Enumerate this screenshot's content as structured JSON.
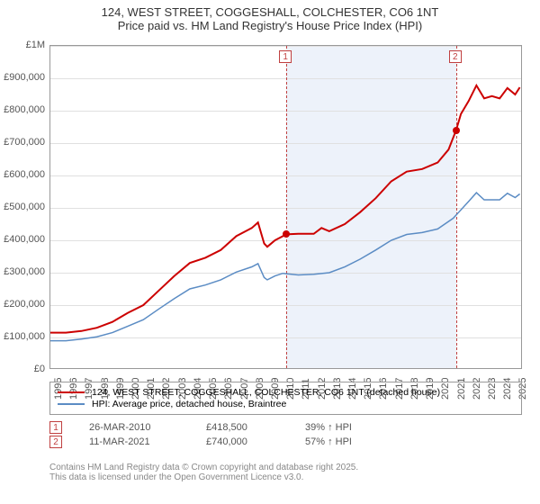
{
  "title": {
    "line1": "124, WEST STREET, COGGESHALL, COLCHESTER, CO6 1NT",
    "line2": "Price paid vs. HM Land Registry's House Price Index (HPI)"
  },
  "chart": {
    "type": "line",
    "background_color": "#ffffff",
    "grid_color": "#e0e0e0",
    "border_color": "#999999",
    "xlim": [
      1995,
      2025.5
    ],
    "ylim": [
      0,
      1000000
    ],
    "ytick_step": 100000,
    "ytick_labels": [
      "£0",
      "£100,000",
      "£200,000",
      "£300,000",
      "£400,000",
      "£500,000",
      "£600,000",
      "£700,000",
      "£800,000",
      "£900,000",
      "£1M"
    ],
    "xticks": [
      1995,
      1996,
      1997,
      1998,
      1999,
      2000,
      2001,
      2002,
      2003,
      2004,
      2005,
      2006,
      2007,
      2008,
      2009,
      2010,
      2011,
      2012,
      2013,
      2014,
      2015,
      2016,
      2017,
      2018,
      2019,
      2020,
      2021,
      2022,
      2023,
      2024,
      2025
    ],
    "shaded_region": {
      "xstart": 2010.23,
      "xend": 2021.19,
      "color": "#edf2fa"
    },
    "title_fontsize": 13,
    "label_fontsize": 11,
    "series": [
      {
        "name": "property",
        "label": "124, WEST STREET, COGGESHALL, COLCHESTER, CO6 1NT (detached house)",
        "color": "#cc0000",
        "line_width": 2,
        "data": [
          [
            1995,
            115000
          ],
          [
            1996,
            115000
          ],
          [
            1997,
            120000
          ],
          [
            1998,
            130000
          ],
          [
            1999,
            148000
          ],
          [
            2000,
            176000
          ],
          [
            2001,
            200000
          ],
          [
            2002,
            245000
          ],
          [
            2003,
            290000
          ],
          [
            2004,
            330000
          ],
          [
            2005,
            346000
          ],
          [
            2006,
            370000
          ],
          [
            2007,
            413000
          ],
          [
            2008,
            438000
          ],
          [
            2008.4,
            455000
          ],
          [
            2008.8,
            390000
          ],
          [
            2009,
            380000
          ],
          [
            2009.5,
            400000
          ],
          [
            2010.23,
            418500
          ],
          [
            2011,
            420000
          ],
          [
            2012,
            420000
          ],
          [
            2012.5,
            438000
          ],
          [
            2013,
            428000
          ],
          [
            2014,
            450000
          ],
          [
            2015,
            487000
          ],
          [
            2016,
            530000
          ],
          [
            2017,
            582000
          ],
          [
            2018,
            612000
          ],
          [
            2019,
            620000
          ],
          [
            2020,
            640000
          ],
          [
            2020.7,
            680000
          ],
          [
            2021.19,
            740000
          ],
          [
            2021.5,
            790000
          ],
          [
            2022,
            830000
          ],
          [
            2022.5,
            878000
          ],
          [
            2023,
            838000
          ],
          [
            2023.5,
            845000
          ],
          [
            2024,
            838000
          ],
          [
            2024.5,
            870000
          ],
          [
            2025,
            850000
          ],
          [
            2025.3,
            872000
          ]
        ]
      },
      {
        "name": "hpi",
        "label": "HPI: Average price, detached house, Braintree",
        "color": "#5b8cc4",
        "line_width": 1.5,
        "data": [
          [
            1995,
            90000
          ],
          [
            1996,
            90000
          ],
          [
            1997,
            95000
          ],
          [
            1998,
            102000
          ],
          [
            1999,
            115000
          ],
          [
            2000,
            135000
          ],
          [
            2001,
            155000
          ],
          [
            2002,
            188000
          ],
          [
            2003,
            220000
          ],
          [
            2004,
            250000
          ],
          [
            2005,
            262000
          ],
          [
            2006,
            278000
          ],
          [
            2007,
            302000
          ],
          [
            2008,
            318000
          ],
          [
            2008.4,
            328000
          ],
          [
            2008.8,
            285000
          ],
          [
            2009,
            278000
          ],
          [
            2009.5,
            290000
          ],
          [
            2010,
            298000
          ],
          [
            2011,
            293000
          ],
          [
            2012,
            295000
          ],
          [
            2013,
            300000
          ],
          [
            2014,
            318000
          ],
          [
            2015,
            342000
          ],
          [
            2016,
            370000
          ],
          [
            2017,
            400000
          ],
          [
            2018,
            418000
          ],
          [
            2019,
            424000
          ],
          [
            2020,
            435000
          ],
          [
            2021,
            468000
          ],
          [
            2022,
            520000
          ],
          [
            2022.5,
            547000
          ],
          [
            2023,
            525000
          ],
          [
            2024,
            525000
          ],
          [
            2024.5,
            545000
          ],
          [
            2025,
            532000
          ],
          [
            2025.3,
            543000
          ]
        ]
      }
    ],
    "markers": [
      {
        "num": "1",
        "x": 2010.23,
        "y": 418500,
        "color": "#cc0000",
        "line_color": "#c04040"
      },
      {
        "num": "2",
        "x": 2021.19,
        "y": 740000,
        "color": "#cc0000",
        "line_color": "#c04040"
      }
    ]
  },
  "sales": [
    {
      "num": "1",
      "date": "26-MAR-2010",
      "price": "£418,500",
      "pct": "39% ↑ HPI"
    },
    {
      "num": "2",
      "date": "11-MAR-2021",
      "price": "£740,000",
      "pct": "57% ↑ HPI"
    }
  ],
  "footer": {
    "line1": "Contains HM Land Registry data © Crown copyright and database right 2025.",
    "line2": "This data is licensed under the Open Government Licence v3.0."
  }
}
